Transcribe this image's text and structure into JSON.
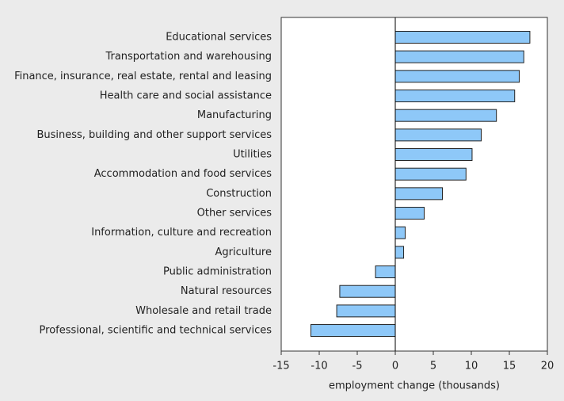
{
  "chart_data": {
    "type": "hbar",
    "x_label": "employment change (thousands)",
    "categories": [
      "Educational services",
      "Transportation and warehousing",
      "Finance, insurance, real estate, rental and leasing",
      "Health care and social assistance",
      "Manufacturing",
      "Business, building and other support services",
      "Utilities",
      "Accommodation and food services",
      "Construction",
      "Other services",
      "Information, culture and recreation",
      "Agriculture",
      "Public administration",
      "Natural resources",
      "Wholesale and retail trade",
      "Professional, scientific and technical services"
    ],
    "values": [
      17.7,
      16.9,
      16.3,
      15.7,
      13.3,
      11.3,
      10.1,
      9.3,
      6.2,
      3.8,
      1.3,
      1.1,
      -2.6,
      -7.3,
      -7.7,
      -11.1
    ],
    "color": "#8ec8f8",
    "xlim": [
      -15,
      20
    ],
    "xticks": [
      -15,
      -10,
      -5,
      0,
      5,
      10,
      15,
      20
    ]
  }
}
